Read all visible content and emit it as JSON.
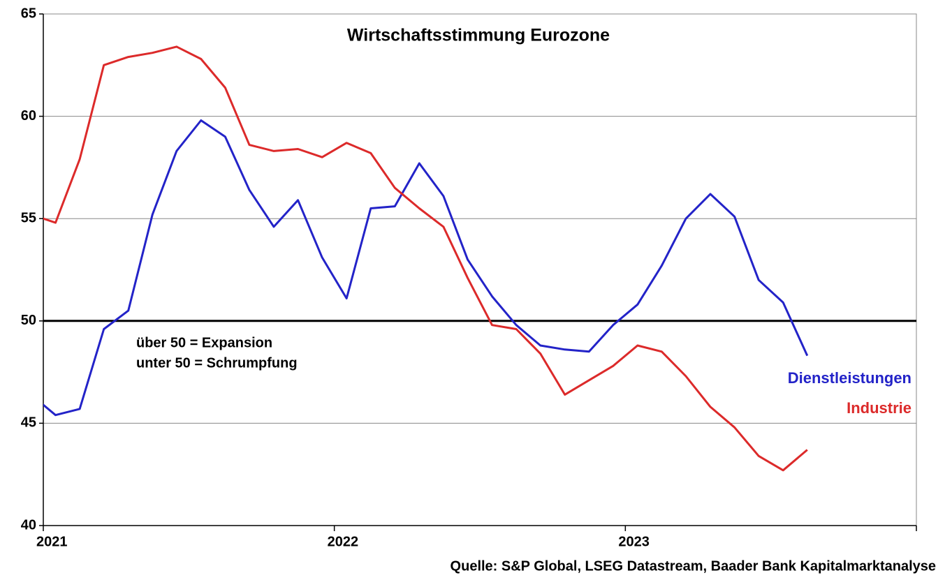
{
  "chart_data": {
    "type": "line",
    "title": "Wirtschaftsstimmung Eurozone",
    "annotations": [
      "über 50 = Expansion",
      "unter 50 = Schrumpfung"
    ],
    "source": "Quelle: S&P Global, LSEG Datastream, Baader Bank Kapitalmarktanalyse",
    "x": [
      2020.958,
      2021.042,
      2021.125,
      2021.208,
      2021.292,
      2021.375,
      2021.458,
      2021.542,
      2021.625,
      2021.708,
      2021.792,
      2021.875,
      2021.958,
      2022.042,
      2022.125,
      2022.208,
      2022.292,
      2022.375,
      2022.458,
      2022.542,
      2022.625,
      2022.708,
      2022.792,
      2022.875,
      2022.958,
      2023.042,
      2023.125,
      2023.208,
      2023.292,
      2023.375,
      2023.458,
      2023.542,
      2023.625
    ],
    "series": [
      {
        "name": "Dienstleistungen",
        "color": "#2323c8",
        "values": [
          46.4,
          45.4,
          45.7,
          49.6,
          50.5,
          55.2,
          58.3,
          59.8,
          59.0,
          56.4,
          54.6,
          55.9,
          53.1,
          51.1,
          55.5,
          55.6,
          57.7,
          56.1,
          53.0,
          51.2,
          49.8,
          48.8,
          48.6,
          48.5,
          49.8,
          50.8,
          52.7,
          55.0,
          56.2,
          55.1,
          52.0,
          50.9,
          48.3
        ]
      },
      {
        "name": "Industrie",
        "color": "#dc2a2a",
        "values": [
          55.2,
          54.8,
          57.9,
          62.5,
          62.9,
          63.1,
          63.4,
          62.8,
          61.4,
          58.6,
          58.3,
          58.4,
          58.0,
          58.7,
          58.2,
          56.5,
          55.5,
          54.6,
          52.1,
          49.8,
          49.6,
          48.4,
          46.4,
          47.1,
          47.8,
          48.8,
          48.5,
          47.3,
          45.8,
          44.8,
          43.4,
          42.7,
          43.7
        ]
      }
    ],
    "xlim": [
      2021,
      2024
    ],
    "xticks": [
      2021,
      2022,
      2023
    ],
    "ylim": [
      40,
      65
    ],
    "yticks": [
      40,
      45,
      50,
      55,
      60,
      65
    ],
    "reference_line": 50,
    "grid": true
  }
}
